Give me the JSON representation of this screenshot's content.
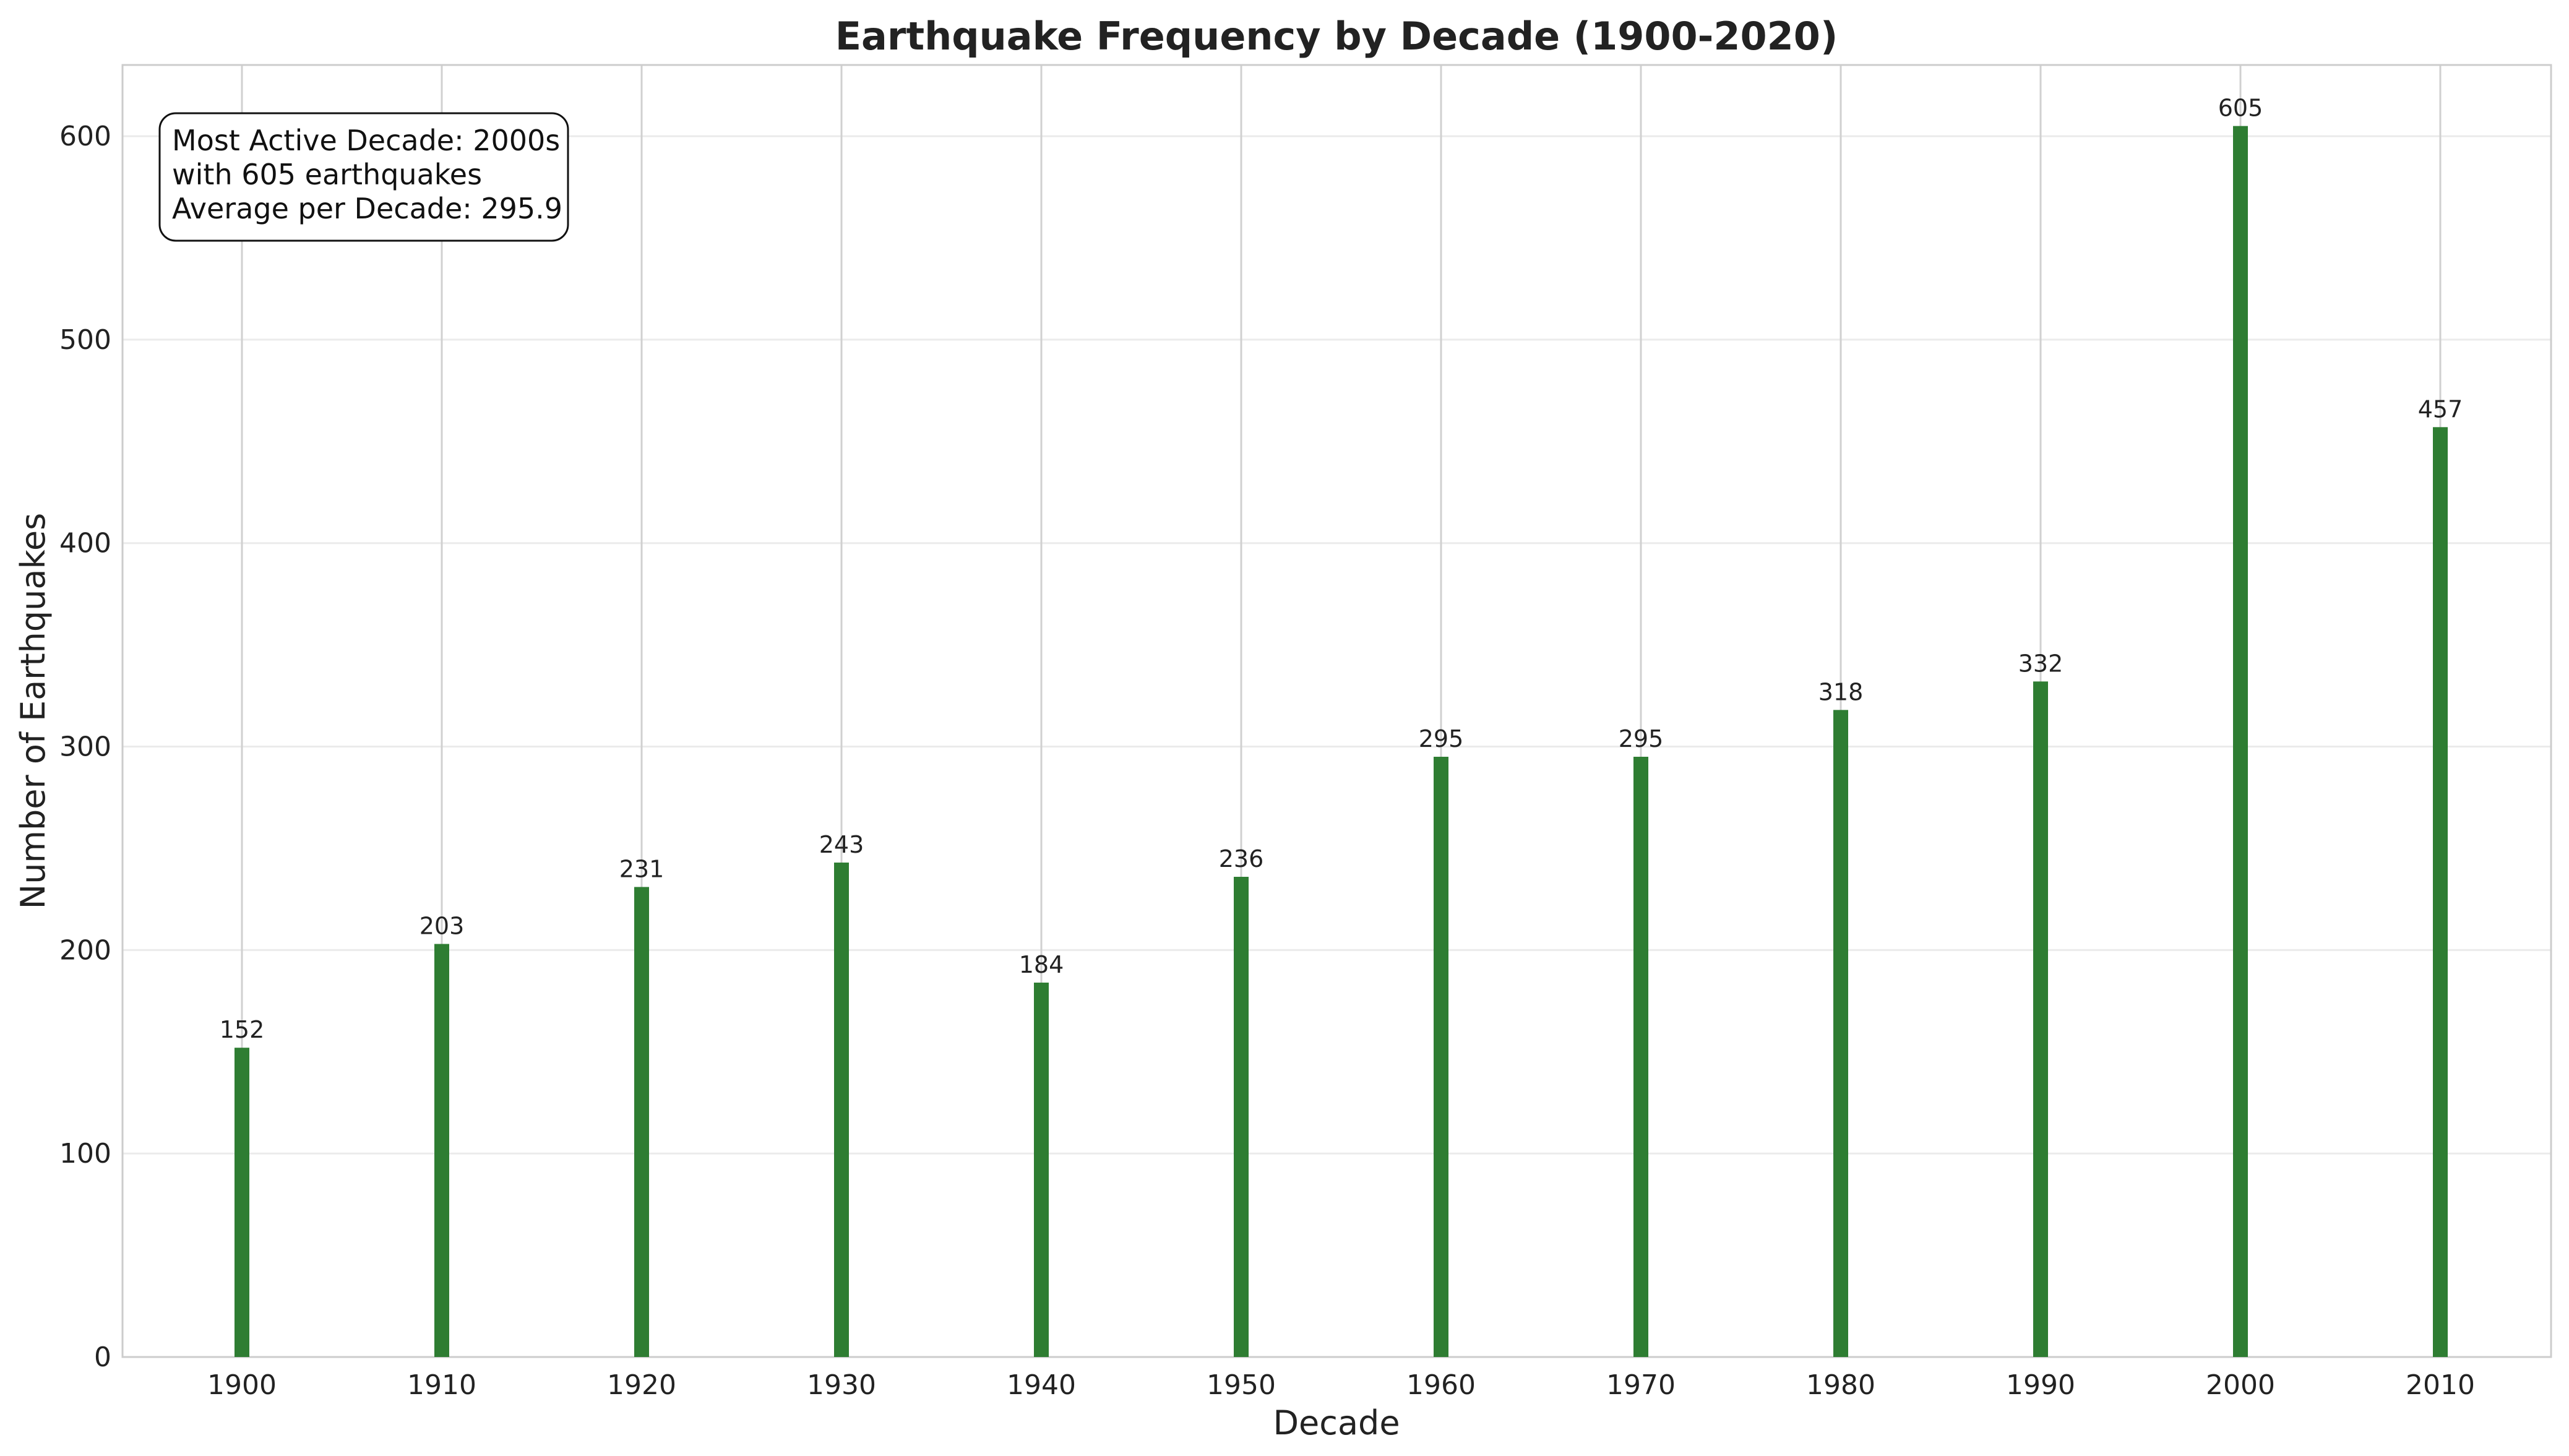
{
  "chart_data": {
    "type": "bar",
    "title": "Earthquake Frequency by Decade (1900-2020)",
    "xlabel": "Decade",
    "ylabel": "Number of Earthquakes",
    "categories": [
      "1900",
      "1910",
      "1920",
      "1930",
      "1940",
      "1950",
      "1960",
      "1970",
      "1980",
      "1990",
      "2000",
      "2010"
    ],
    "values": [
      152,
      203,
      231,
      243,
      184,
      236,
      295,
      295,
      318,
      332,
      605,
      457
    ],
    "ylim": [
      0,
      635
    ],
    "yticks": [
      "0",
      "100",
      "200",
      "300",
      "400",
      "500",
      "600"
    ],
    "data_labels": [
      "152",
      "203",
      "231",
      "243",
      "184",
      "236",
      "295",
      "295",
      "318",
      "332",
      "605",
      "457"
    ],
    "bar_color": "#2e7d32",
    "grid": true,
    "annotation_lines": [
      "Most Active Decade: 2000s",
      "with 605 earthquakes",
      "Average per Decade: 295.9"
    ],
    "annotation_position": "top-left"
  }
}
